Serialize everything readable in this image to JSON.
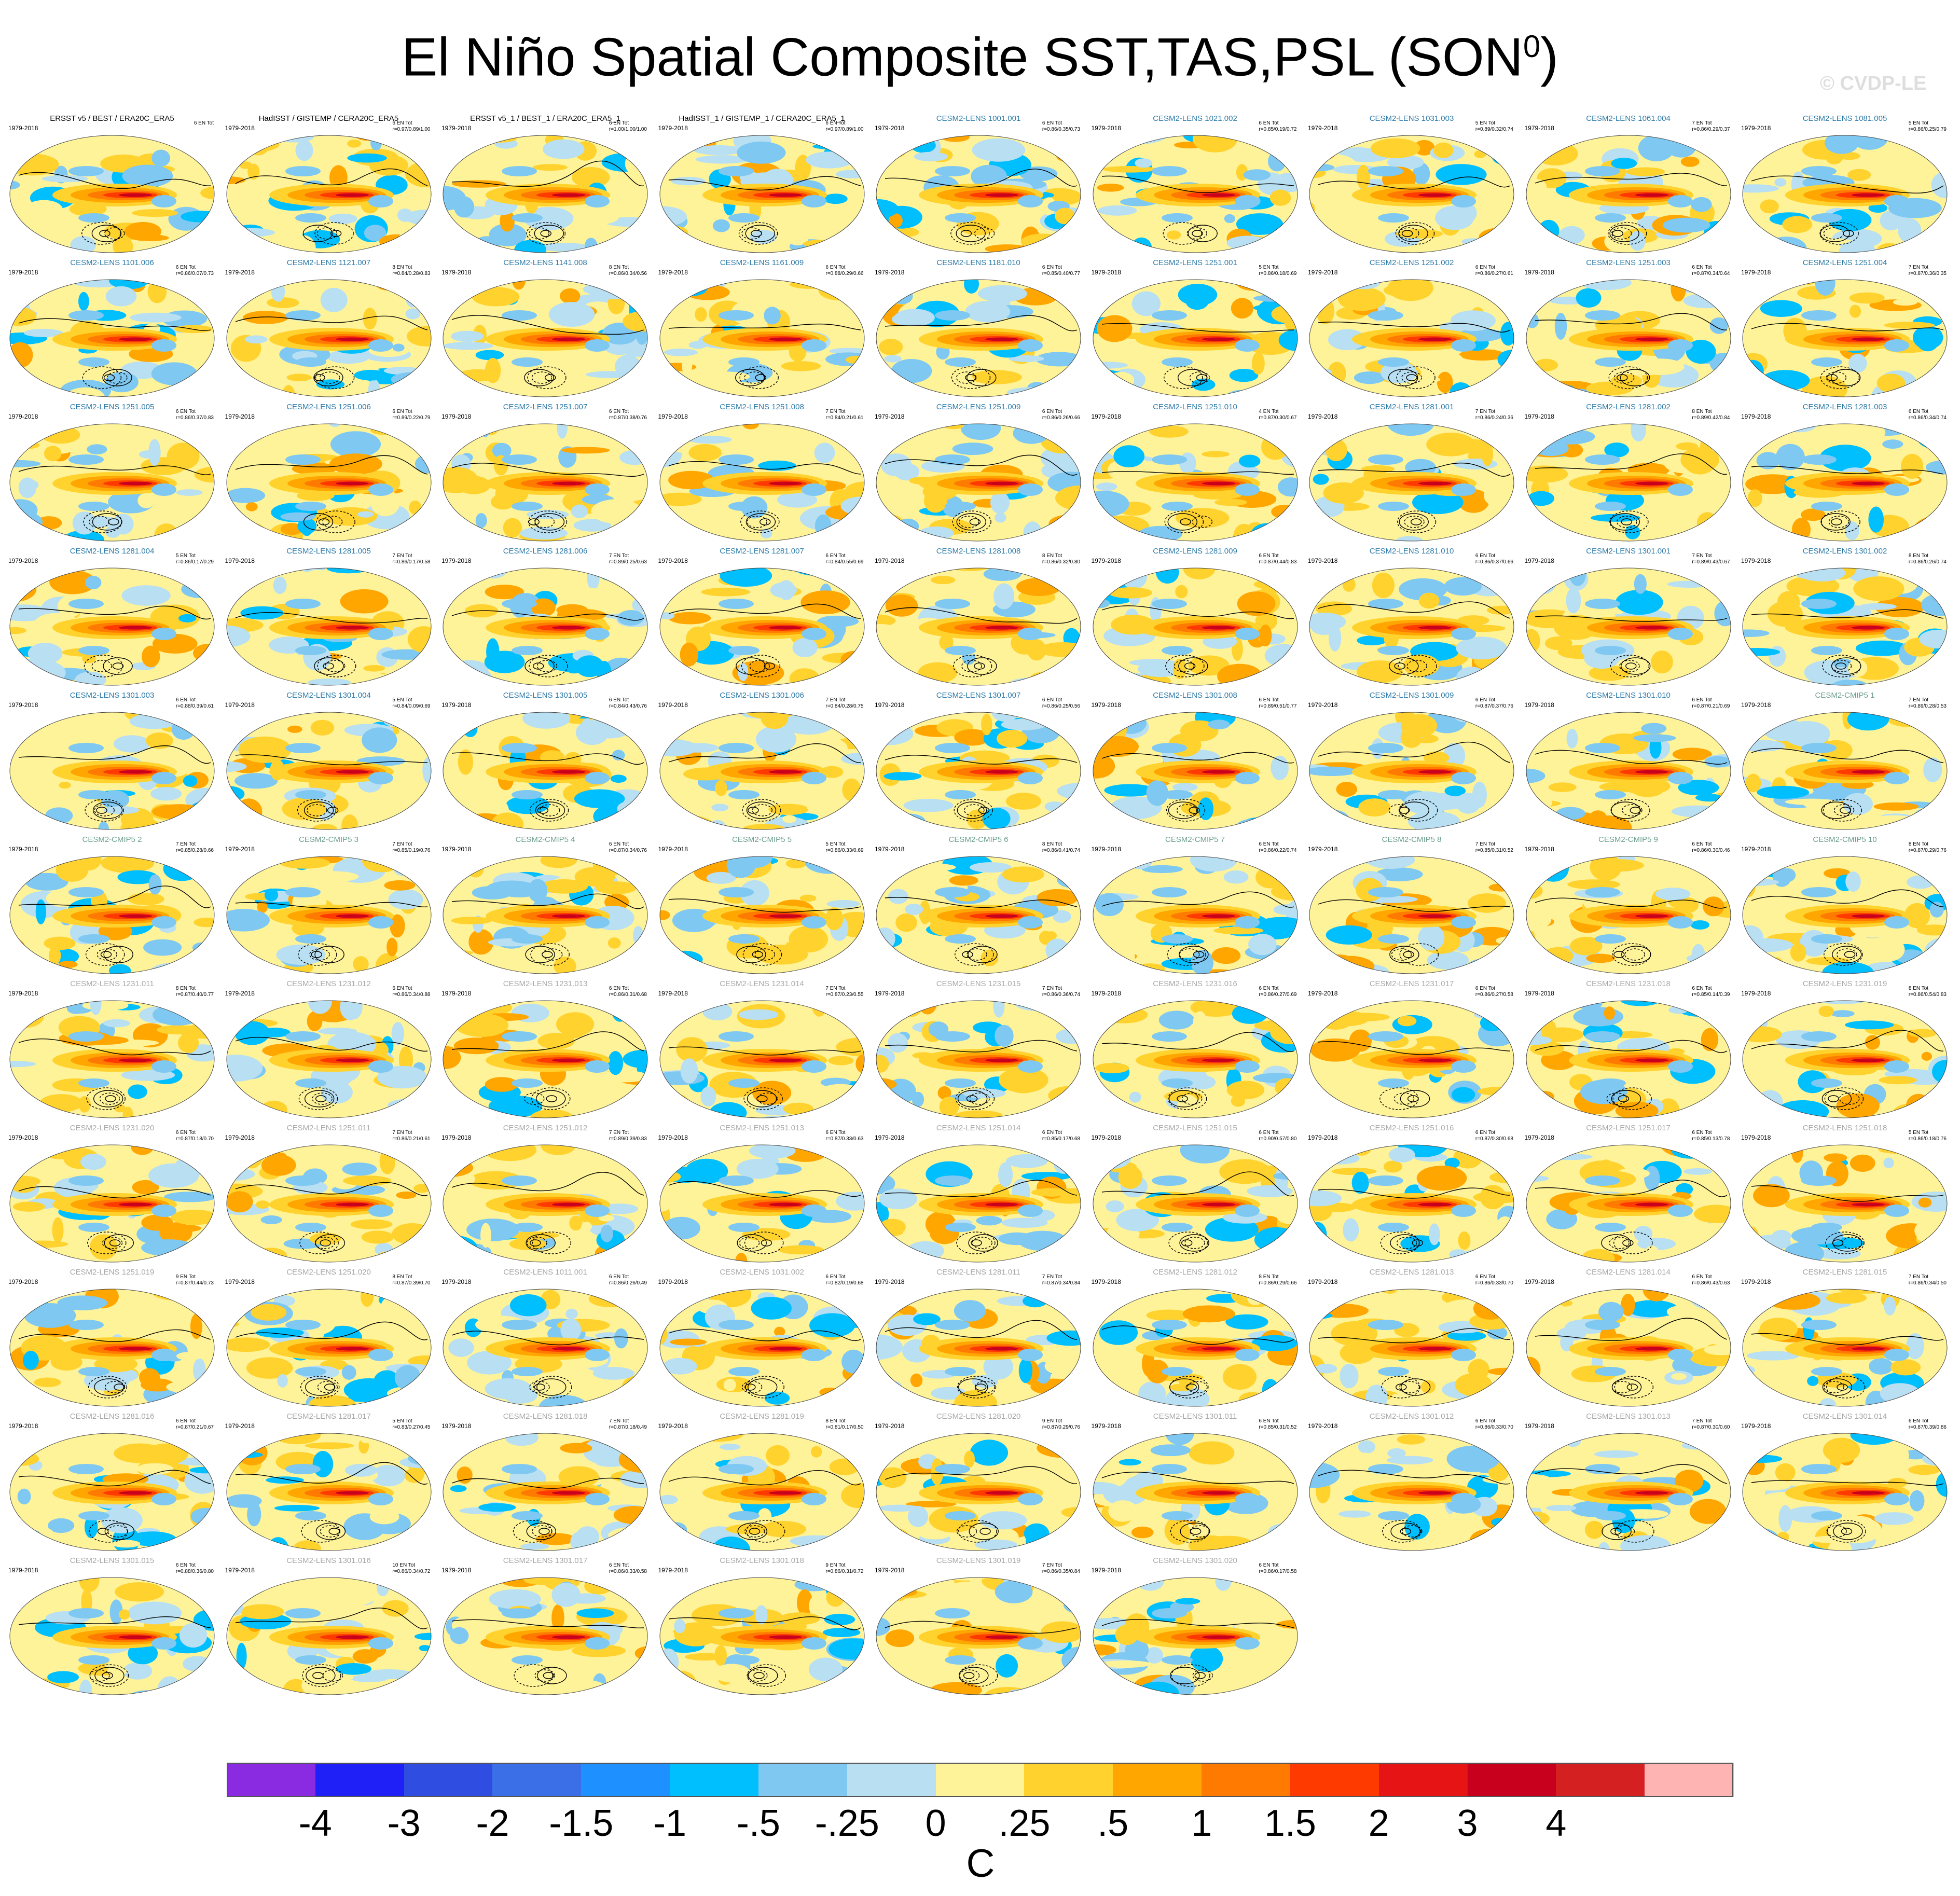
{
  "chart_data": {
    "type": "heatmap",
    "title": "El Niño Spatial Composite SST,TAS,PSL (SON",
    "title_superscript": "0",
    "title_suffix": ")",
    "watermark": "© CVDP-LE",
    "period": "1979-2018",
    "contour_color": "#000000",
    "panels": [
      {
        "title": "ERSST v5 / BEST / ERA20C_ERA5",
        "group": "obs",
        "stat1": "6 EN Tot",
        "stat2": ""
      },
      {
        "title": "HadISST / GISTEMP / CERA20C_ERA5",
        "group": "obs",
        "stat1": "6 EN Tot",
        "stat2": "r=0.97/0.89/1.00"
      },
      {
        "title": "ERSST v5_1 / BEST_1 / ERA20C_ERA5_1",
        "group": "obs",
        "stat1": "6 EN Tot",
        "stat2": "r=1.00/1.00/1.00"
      },
      {
        "title": "HadISST_1 / GISTEMP_1 / CERA20C_ERA5_1",
        "group": "obs",
        "stat1": "6 EN Tot",
        "stat2": "r=0.97/0.89/1.00"
      },
      {
        "title": "CESM2-LENS 1001.001",
        "group": "lens",
        "stat1": "6 EN Tot",
        "stat2": "r=0.86/0.35/0.73"
      },
      {
        "title": "CESM2-LENS 1021.002",
        "group": "lens",
        "stat1": "6 EN Tot",
        "stat2": "r=0.85/0.19/0.72"
      },
      {
        "title": "CESM2-LENS 1031.003",
        "group": "lens",
        "stat1": "5 EN Tot",
        "stat2": "r=0.89/0.32/0.74"
      },
      {
        "title": "CESM2-LENS 1061.004",
        "group": "lens",
        "stat1": "7 EN Tot",
        "stat2": "r=0.86/0.29/0.37"
      },
      {
        "title": "CESM2-LENS 1081.005",
        "group": "lens",
        "stat1": "5 EN Tot",
        "stat2": "r=0.86/0.25/0.79"
      },
      {
        "title": "CESM2-LENS 1101.006",
        "group": "lens",
        "stat1": "6 EN Tot",
        "stat2": "r=0.86/0.07/0.73"
      },
      {
        "title": "CESM2-LENS 1121.007",
        "group": "lens",
        "stat1": "8 EN Tot",
        "stat2": "r=0.84/0.28/0.83"
      },
      {
        "title": "CESM2-LENS 1141.008",
        "group": "lens",
        "stat1": "8 EN Tot",
        "stat2": "r=0.86/0.34/0.56"
      },
      {
        "title": "CESM2-LENS 1161.009",
        "group": "lens",
        "stat1": "6 EN Tot",
        "stat2": "r=0.88/0.29/0.66"
      },
      {
        "title": "CESM2-LENS 1181.010",
        "group": "lens",
        "stat1": "6 EN Tot",
        "stat2": "r=0.85/0.40/0.77"
      },
      {
        "title": "CESM2-LENS 1251.001",
        "group": "lens",
        "stat1": "5 EN Tot",
        "stat2": "r=0.86/0.18/0.69"
      },
      {
        "title": "CESM2-LENS 1251.002",
        "group": "lens",
        "stat1": "6 EN Tot",
        "stat2": "r=0.86/0.27/0.61"
      },
      {
        "title": "CESM2-LENS 1251.003",
        "group": "lens",
        "stat1": "6 EN Tot",
        "stat2": "r=0.87/0.34/0.64"
      },
      {
        "title": "CESM2-LENS 1251.004",
        "group": "lens",
        "stat1": "7 EN Tot",
        "stat2": "r=0.87/0.36/0.35"
      },
      {
        "title": "CESM2-LENS 1251.005",
        "group": "lens",
        "stat1": "6 EN Tot",
        "stat2": "r=0.86/0.37/0.83"
      },
      {
        "title": "CESM2-LENS 1251.006",
        "group": "lens",
        "stat1": "6 EN Tot",
        "stat2": "r=0.89/0.22/0.79"
      },
      {
        "title": "CESM2-LENS 1251.007",
        "group": "lens",
        "stat1": "6 EN Tot",
        "stat2": "r=0.87/0.38/0.76"
      },
      {
        "title": "CESM2-LENS 1251.008",
        "group": "lens",
        "stat1": "7 EN Tot",
        "stat2": "r=0.84/0.21/0.61"
      },
      {
        "title": "CESM2-LENS 1251.009",
        "group": "lens",
        "stat1": "6 EN Tot",
        "stat2": "r=0.86/0.26/0.66"
      },
      {
        "title": "CESM2-LENS 1251.010",
        "group": "lens",
        "stat1": "4 EN Tot",
        "stat2": "r=0.87/0.30/0.67"
      },
      {
        "title": "CESM2-LENS 1281.001",
        "group": "lens",
        "stat1": "7 EN Tot",
        "stat2": "r=0.86/0.24/0.36"
      },
      {
        "title": "CESM2-LENS 1281.002",
        "group": "lens",
        "stat1": "8 EN Tot",
        "stat2": "r=0.89/0.42/0.84"
      },
      {
        "title": "CESM2-LENS 1281.003",
        "group": "lens",
        "stat1": "6 EN Tot",
        "stat2": "r=0.86/0.34/0.74"
      },
      {
        "title": "CESM2-LENS 1281.004",
        "group": "lens",
        "stat1": "5 EN Tot",
        "stat2": "r=0.86/0.17/0.29"
      },
      {
        "title": "CESM2-LENS 1281.005",
        "group": "lens",
        "stat1": "7 EN Tot",
        "stat2": "r=0.86/0.17/0.58"
      },
      {
        "title": "CESM2-LENS 1281.006",
        "group": "lens",
        "stat1": "7 EN Tot",
        "stat2": "r=0.89/0.25/0.63"
      },
      {
        "title": "CESM2-LENS 1281.007",
        "group": "lens",
        "stat1": "6 EN Tot",
        "stat2": "r=0.84/0.55/0.69"
      },
      {
        "title": "CESM2-LENS 1281.008",
        "group": "lens",
        "stat1": "8 EN Tot",
        "stat2": "r=0.86/0.32/0.80"
      },
      {
        "title": "CESM2-LENS 1281.009",
        "group": "lens",
        "stat1": "6 EN Tot",
        "stat2": "r=0.87/0.44/0.83"
      },
      {
        "title": "CESM2-LENS 1281.010",
        "group": "lens",
        "stat1": "6 EN Tot",
        "stat2": "r=0.86/0.37/0.66"
      },
      {
        "title": "CESM2-LENS 1301.001",
        "group": "lens",
        "stat1": "7 EN Tot",
        "stat2": "r=0.89/0.43/0.67"
      },
      {
        "title": "CESM2-LENS 1301.002",
        "group": "lens",
        "stat1": "8 EN Tot",
        "stat2": "r=0.86/0.26/0.74"
      },
      {
        "title": "CESM2-LENS 1301.003",
        "group": "lens",
        "stat1": "6 EN Tot",
        "stat2": "r=0.88/0.39/0.61"
      },
      {
        "title": "CESM2-LENS 1301.004",
        "group": "lens",
        "stat1": "5 EN Tot",
        "stat2": "r=0.84/0.09/0.69"
      },
      {
        "title": "CESM2-LENS 1301.005",
        "group": "lens",
        "stat1": "6 EN Tot",
        "stat2": "r=0.84/0.43/0.76"
      },
      {
        "title": "CESM2-LENS 1301.006",
        "group": "lens",
        "stat1": "7 EN Tot",
        "stat2": "r=0.84/0.28/0.75"
      },
      {
        "title": "CESM2-LENS 1301.007",
        "group": "lens",
        "stat1": "6 EN Tot",
        "stat2": "r=0.86/0.25/0.56"
      },
      {
        "title": "CESM2-LENS 1301.008",
        "group": "lens",
        "stat1": "6 EN Tot",
        "stat2": "r=0.89/0.51/0.77"
      },
      {
        "title": "CESM2-LENS 1301.009",
        "group": "lens",
        "stat1": "6 EN Tot",
        "stat2": "r=0.87/0.37/0.76"
      },
      {
        "title": "CESM2-LENS 1301.010",
        "group": "lens",
        "stat1": "6 EN Tot",
        "stat2": "r=0.87/0.21/0.69"
      },
      {
        "title": "CESM2-CMIP5 1",
        "group": "cmip",
        "stat1": "7 EN Tot",
        "stat2": "r=0.89/0.28/0.53"
      },
      {
        "title": "CESM2-CMIP5 2",
        "group": "cmip",
        "stat1": "7 EN Tot",
        "stat2": "r=0.85/0.28/0.66"
      },
      {
        "title": "CESM2-CMIP5 3",
        "group": "cmip",
        "stat1": "7 EN Tot",
        "stat2": "r=0.85/0.19/0.76"
      },
      {
        "title": "CESM2-CMIP5 4",
        "group": "cmip",
        "stat1": "6 EN Tot",
        "stat2": "r=0.87/0.34/0.76"
      },
      {
        "title": "CESM2-CMIP5 5",
        "group": "cmip",
        "stat1": "5 EN Tot",
        "stat2": "r=0.86/0.33/0.69"
      },
      {
        "title": "CESM2-CMIP5 6",
        "group": "cmip",
        "stat1": "8 EN Tot",
        "stat2": "r=0.86/0.41/0.74"
      },
      {
        "title": "CESM2-CMIP5 7",
        "group": "cmip",
        "stat1": "6 EN Tot",
        "stat2": "r=0.86/0.22/0.74"
      },
      {
        "title": "CESM2-CMIP5 8",
        "group": "cmip",
        "stat1": "7 EN Tot",
        "stat2": "r=0.85/0.31/0.52"
      },
      {
        "title": "CESM2-CMIP5 9",
        "group": "cmip",
        "stat1": "6 EN Tot",
        "stat2": "r=0.86/0.30/0.46"
      },
      {
        "title": "CESM2-CMIP5 10",
        "group": "cmip",
        "stat1": "8 EN Tot",
        "stat2": "r=0.87/0.29/0.76"
      },
      {
        "title": "CESM2-LENS 1231.011",
        "group": "smbb",
        "stat1": "8 EN Tot",
        "stat2": "r=0.87/0.40/0.77"
      },
      {
        "title": "CESM2-LENS 1231.012",
        "group": "smbb",
        "stat1": "6 EN Tot",
        "stat2": "r=0.86/0.34/0.88"
      },
      {
        "title": "CESM2-LENS 1231.013",
        "group": "smbb",
        "stat1": "6 EN Tot",
        "stat2": "r=0.86/0.31/0.68"
      },
      {
        "title": "CESM2-LENS 1231.014",
        "group": "smbb",
        "stat1": "7 EN Tot",
        "stat2": "r=0.87/0.23/0.55"
      },
      {
        "title": "CESM2-LENS 1231.015",
        "group": "smbb",
        "stat1": "7 EN Tot",
        "stat2": "r=0.86/0.36/0.74"
      },
      {
        "title": "CESM2-LENS 1231.016",
        "group": "smbb",
        "stat1": "6 EN Tot",
        "stat2": "r=0.86/0.27/0.69"
      },
      {
        "title": "CESM2-LENS 1231.017",
        "group": "smbb",
        "stat1": "6 EN Tot",
        "stat2": "r=0.86/0.27/0.58"
      },
      {
        "title": "CESM2-LENS 1231.018",
        "group": "smbb",
        "stat1": "6 EN Tot",
        "stat2": "r=0.85/0.14/0.39"
      },
      {
        "title": "CESM2-LENS 1231.019",
        "group": "smbb",
        "stat1": "8 EN Tot",
        "stat2": "r=0.86/0.54/0.83"
      },
      {
        "title": "CESM2-LENS 1231.020",
        "group": "smbb",
        "stat1": "6 EN Tot",
        "stat2": "r=0.87/0.18/0.70"
      },
      {
        "title": "CESM2-LENS 1251.011",
        "group": "smbb",
        "stat1": "7 EN Tot",
        "stat2": "r=0.86/0.21/0.61"
      },
      {
        "title": "CESM2-LENS 1251.012",
        "group": "smbb",
        "stat1": "7 EN Tot",
        "stat2": "r=0.89/0.39/0.83"
      },
      {
        "title": "CESM2-LENS 1251.013",
        "group": "smbb",
        "stat1": "6 EN Tot",
        "stat2": "r=0.87/0.33/0.63"
      },
      {
        "title": "CESM2-LENS 1251.014",
        "group": "smbb",
        "stat1": "6 EN Tot",
        "stat2": "r=0.85/0.17/0.68"
      },
      {
        "title": "CESM2-LENS 1251.015",
        "group": "smbb",
        "stat1": "6 EN Tot",
        "stat2": "r=0.90/0.57/0.80"
      },
      {
        "title": "CESM2-LENS 1251.016",
        "group": "smbb",
        "stat1": "6 EN Tot",
        "stat2": "r=0.87/0.30/0.68"
      },
      {
        "title": "CESM2-LENS 1251.017",
        "group": "smbb",
        "stat1": "6 EN Tot",
        "stat2": "r=0.85/0.13/0.78"
      },
      {
        "title": "CESM2-LENS 1251.018",
        "group": "smbb",
        "stat1": "5 EN Tot",
        "stat2": "r=0.86/0.18/0.76"
      },
      {
        "title": "CESM2-LENS 1251.019",
        "group": "smbb",
        "stat1": "9 EN Tot",
        "stat2": "r=0.87/0.44/0.73"
      },
      {
        "title": "CESM2-LENS 1251.020",
        "group": "smbb",
        "stat1": "8 EN Tot",
        "stat2": "r=0.87/0.39/0.70"
      },
      {
        "title": "CESM2-LENS 1011.001",
        "group": "smbb",
        "stat1": "6 EN Tot",
        "stat2": "r=0.86/0.26/0.49"
      },
      {
        "title": "CESM2-LENS 1031.002",
        "group": "smbb",
        "stat1": "6 EN Tot",
        "stat2": "r=0.82/0.19/0.68"
      },
      {
        "title": "CESM2-LENS 1281.011",
        "group": "smbb",
        "stat1": "7 EN Tot",
        "stat2": "r=0.87/0.34/0.84"
      },
      {
        "title": "CESM2-LENS 1281.012",
        "group": "smbb",
        "stat1": "8 EN Tot",
        "stat2": "r=0.86/0.29/0.66"
      },
      {
        "title": "CESM2-LENS 1281.013",
        "group": "smbb",
        "stat1": "6 EN Tot",
        "stat2": "r=0.86/0.33/0.70"
      },
      {
        "title": "CESM2-LENS 1281.014",
        "group": "smbb",
        "stat1": "6 EN Tot",
        "stat2": "r=0.86/0.43/0.63"
      },
      {
        "title": "CESM2-LENS 1281.015",
        "group": "smbb",
        "stat1": "7 EN Tot",
        "stat2": "r=0.86/0.34/0.50"
      },
      {
        "title": "CESM2-LENS 1281.016",
        "group": "smbb",
        "stat1": "6 EN Tot",
        "stat2": "r=0.87/0.21/0.67"
      },
      {
        "title": "CESM2-LENS 1281.017",
        "group": "smbb",
        "stat1": "5 EN Tot",
        "stat2": "r=0.83/0.27/0.45"
      },
      {
        "title": "CESM2-LENS 1281.018",
        "group": "smbb",
        "stat1": "7 EN Tot",
        "stat2": "r=0.87/0.18/0.49"
      },
      {
        "title": "CESM2-LENS 1281.019",
        "group": "smbb",
        "stat1": "8 EN Tot",
        "stat2": "r=0.81/0.17/0.50"
      },
      {
        "title": "CESM2-LENS 1281.020",
        "group": "smbb",
        "stat1": "9 EN Tot",
        "stat2": "r=0.87/0.29/0.76"
      },
      {
        "title": "CESM2-LENS 1301.011",
        "group": "smbb",
        "stat1": "6 EN Tot",
        "stat2": "r=0.85/0.31/0.52"
      },
      {
        "title": "CESM2-LENS 1301.012",
        "group": "smbb",
        "stat1": "6 EN Tot",
        "stat2": "r=0.86/0.33/0.70"
      },
      {
        "title": "CESM2-LENS 1301.013",
        "group": "smbb",
        "stat1": "7 EN Tot",
        "stat2": "r=0.87/0.30/0.60"
      },
      {
        "title": "CESM2-LENS 1301.014",
        "group": "smbb",
        "stat1": "6 EN Tot",
        "stat2": "r=0.87/0.39/0.86"
      },
      {
        "title": "CESM2-LENS 1301.015",
        "group": "smbb",
        "stat1": "6 EN Tot",
        "stat2": "r=0.88/0.36/0.80"
      },
      {
        "title": "CESM2-LENS 1301.016",
        "group": "smbb",
        "stat1": "10 EN Tot",
        "stat2": "r=0.86/0.34/0.72"
      },
      {
        "title": "CESM2-LENS 1301.017",
        "group": "smbb",
        "stat1": "6 EN Tot",
        "stat2": "r=0.86/0.33/0.58"
      },
      {
        "title": "CESM2-LENS 1301.018",
        "group": "smbb",
        "stat1": "9 EN Tot",
        "stat2": "r=0.86/0.31/0.72"
      },
      {
        "title": "CESM2-LENS 1301.019",
        "group": "smbb",
        "stat1": "7 EN Tot",
        "stat2": "r=0.86/0.35/0.84"
      },
      {
        "title": "CESM2-LENS 1301.020",
        "group": "smbb",
        "stat1": "6 EN Tot",
        "stat2": "r=0.86/0.17/0.58"
      }
    ],
    "colorbar": {
      "unit": "C",
      "labels": [
        "-4",
        "-3",
        "-2",
        "-1.5",
        "-1",
        "-.5",
        "-.25",
        "0",
        ".25",
        ".5",
        "1",
        "1.5",
        "2",
        "3",
        "4"
      ],
      "colors": [
        "#8a2be2",
        "#1f1ff8",
        "#2f4de0",
        "#3a6fe8",
        "#1e90ff",
        "#00bfff",
        "#7ec8f2",
        "#b8dff2",
        "#fff399",
        "#ffd22e",
        "#ffa600",
        "#ff7a00",
        "#ff3a00",
        "#e61414",
        "#c8001e",
        "#d42020",
        "#ffb4b4"
      ],
      "group_colors": {
        "obs": "#000000",
        "lens": "#2c7aa8",
        "cmip": "#6c9e8f",
        "smbb": "#a8a8a8"
      }
    }
  }
}
